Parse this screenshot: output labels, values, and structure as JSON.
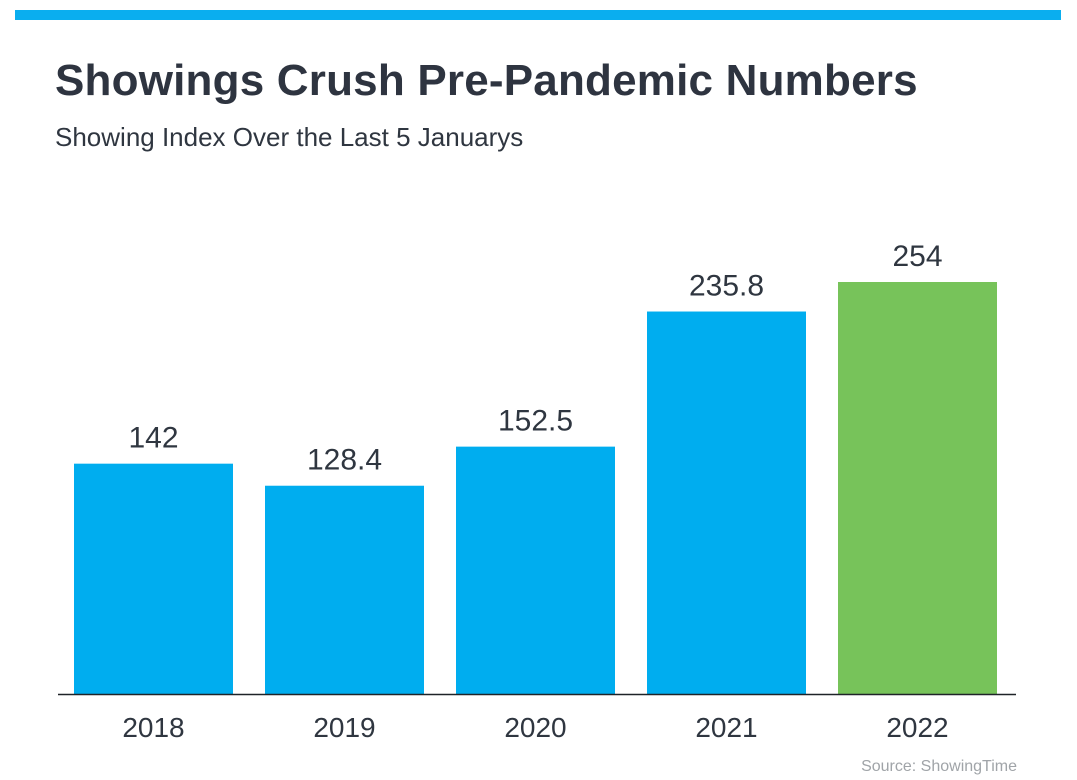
{
  "title": "Showings Crush Pre-Pandemic Numbers",
  "subtitle": "Showing Index Over the Last 5 Januarys",
  "source": "Source: ShowingTime",
  "colors": {
    "accent_bar": "#0aaeef",
    "bar_default": "#00adef",
    "bar_highlight": "#77c35a",
    "axis_line": "#1f2328",
    "text": "#2f3640",
    "source_text": "#a0a4a8"
  },
  "chart_data": {
    "type": "bar",
    "categories": [
      "2018",
      "2019",
      "2020",
      "2021",
      "2022"
    ],
    "values": [
      142,
      128.4,
      152.5,
      235.8,
      254
    ],
    "data_labels": [
      "142",
      "128.4",
      "152.5",
      "235.8",
      "254"
    ],
    "highlight_category": "2022",
    "ylim": [
      0,
      254
    ],
    "grid": false,
    "legend": "none"
  }
}
